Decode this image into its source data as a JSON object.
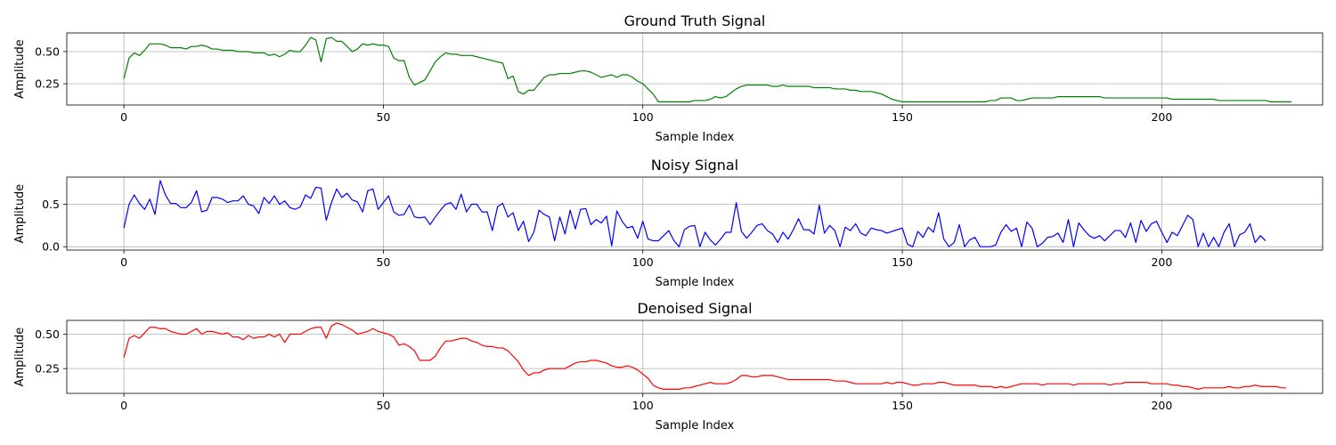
{
  "chart_data": [
    {
      "type": "line",
      "title": "Ground Truth Signal",
      "xlabel": "Sample Index",
      "ylabel": "Amplitude",
      "color": "#008000",
      "xlim": [
        -11,
        231
      ],
      "ylim": [
        0.085,
        0.645
      ],
      "xticks": [
        0,
        50,
        100,
        150,
        200
      ],
      "yticks": [
        0.25,
        0.5
      ],
      "ytick_labels": [
        "0.25",
        "0.50"
      ],
      "grid": true,
      "x_start": 0,
      "values": [
        0.29,
        0.45,
        0.49,
        0.47,
        0.51,
        0.56,
        0.56,
        0.56,
        0.55,
        0.53,
        0.53,
        0.53,
        0.52,
        0.54,
        0.54,
        0.55,
        0.54,
        0.52,
        0.52,
        0.51,
        0.51,
        0.51,
        0.5,
        0.5,
        0.5,
        0.49,
        0.49,
        0.49,
        0.47,
        0.48,
        0.46,
        0.48,
        0.51,
        0.5,
        0.5,
        0.55,
        0.61,
        0.59,
        0.42,
        0.6,
        0.61,
        0.58,
        0.58,
        0.54,
        0.5,
        0.52,
        0.56,
        0.55,
        0.56,
        0.55,
        0.55,
        0.54,
        0.45,
        0.43,
        0.43,
        0.3,
        0.24,
        0.26,
        0.28,
        0.35,
        0.42,
        0.46,
        0.49,
        0.48,
        0.48,
        0.47,
        0.47,
        0.47,
        0.46,
        0.45,
        0.44,
        0.43,
        0.42,
        0.41,
        0.29,
        0.31,
        0.19,
        0.17,
        0.2,
        0.2,
        0.25,
        0.3,
        0.32,
        0.32,
        0.33,
        0.33,
        0.33,
        0.34,
        0.35,
        0.35,
        0.34,
        0.32,
        0.3,
        0.31,
        0.32,
        0.3,
        0.32,
        0.32,
        0.3,
        0.27,
        0.25,
        0.21,
        0.17,
        0.11,
        0.11,
        0.11,
        0.11,
        0.11,
        0.11,
        0.11,
        0.12,
        0.12,
        0.12,
        0.13,
        0.15,
        0.14,
        0.15,
        0.18,
        0.21,
        0.23,
        0.24,
        0.24,
        0.24,
        0.24,
        0.24,
        0.23,
        0.23,
        0.24,
        0.23,
        0.23,
        0.23,
        0.23,
        0.23,
        0.22,
        0.22,
        0.22,
        0.22,
        0.21,
        0.21,
        0.21,
        0.2,
        0.2,
        0.19,
        0.19,
        0.19,
        0.18,
        0.17,
        0.15,
        0.13,
        0.12,
        0.11,
        0.11,
        0.11,
        0.11,
        0.11,
        0.11,
        0.11,
        0.11,
        0.11,
        0.11,
        0.11,
        0.11,
        0.11,
        0.11,
        0.11,
        0.11,
        0.11,
        0.12,
        0.12,
        0.14,
        0.14,
        0.14,
        0.12,
        0.12,
        0.13,
        0.14,
        0.14,
        0.14,
        0.14,
        0.14,
        0.15,
        0.15,
        0.15,
        0.15,
        0.15,
        0.15,
        0.15,
        0.15,
        0.15,
        0.14,
        0.14,
        0.14,
        0.14,
        0.14,
        0.14,
        0.14,
        0.14,
        0.14,
        0.14,
        0.14,
        0.14,
        0.14,
        0.13,
        0.13,
        0.13,
        0.13,
        0.13,
        0.13,
        0.13,
        0.13,
        0.13,
        0.12,
        0.12,
        0.12,
        0.12,
        0.12,
        0.12,
        0.12,
        0.12,
        0.12,
        0.12,
        0.11,
        0.11,
        0.11,
        0.11,
        0.11
      ]
    },
    {
      "type": "line",
      "title": "Noisy Signal",
      "xlabel": "Sample Index",
      "ylabel": "Amplitude",
      "color": "#0000ff",
      "xlim": [
        -11,
        231
      ],
      "ylim": [
        -0.04,
        0.82
      ],
      "xticks": [
        0,
        50,
        100,
        150,
        200
      ],
      "yticks": [
        0.0,
        0.5
      ],
      "ytick_labels": [
        "0.0",
        "0.5"
      ],
      "grid": true,
      "x_start": 0,
      "values": [
        0.22,
        0.5,
        0.61,
        0.51,
        0.44,
        0.56,
        0.38,
        0.78,
        0.61,
        0.51,
        0.51,
        0.46,
        0.46,
        0.52,
        0.66,
        0.41,
        0.43,
        0.58,
        0.58,
        0.56,
        0.52,
        0.54,
        0.54,
        0.6,
        0.5,
        0.48,
        0.39,
        0.58,
        0.51,
        0.6,
        0.5,
        0.54,
        0.46,
        0.44,
        0.47,
        0.61,
        0.57,
        0.7,
        0.69,
        0.31,
        0.52,
        0.68,
        0.58,
        0.63,
        0.55,
        0.53,
        0.41,
        0.66,
        0.68,
        0.44,
        0.52,
        0.6,
        0.41,
        0.37,
        0.38,
        0.49,
        0.35,
        0.34,
        0.35,
        0.26,
        0.35,
        0.43,
        0.5,
        0.52,
        0.44,
        0.62,
        0.41,
        0.5,
        0.5,
        0.41,
        0.41,
        0.19,
        0.47,
        0.51,
        0.35,
        0.4,
        0.19,
        0.3,
        0.06,
        0.17,
        0.43,
        0.38,
        0.35,
        0.07,
        0.35,
        0.15,
        0.43,
        0.21,
        0.44,
        0.45,
        0.26,
        0.32,
        0.28,
        0.36,
        0.01,
        0.42,
        0.3,
        0.22,
        0.24,
        0.1,
        0.3,
        0.09,
        0.07,
        0.07,
        0.13,
        0.19,
        0.07,
        0.0,
        0.2,
        0.24,
        0.25,
        0.0,
        0.17,
        0.08,
        0.02,
        0.09,
        0.17,
        0.17,
        0.52,
        0.18,
        0.1,
        0.17,
        0.25,
        0.27,
        0.19,
        0.15,
        0.05,
        0.17,
        0.09,
        0.2,
        0.33,
        0.2,
        0.2,
        0.15,
        0.49,
        0.16,
        0.25,
        0.19,
        0.0,
        0.23,
        0.19,
        0.27,
        0.16,
        0.13,
        0.22,
        0.2,
        0.19,
        0.16,
        0.18,
        0.2,
        0.22,
        0.03,
        0.0,
        0.18,
        0.11,
        0.23,
        0.17,
        0.4,
        0.09,
        0.0,
        0.05,
        0.26,
        0.0,
        0.08,
        0.11,
        0.0,
        0.0,
        0.0,
        0.02,
        0.17,
        0.26,
        0.18,
        0.22,
        0.0,
        0.29,
        0.22,
        0.0,
        0.04,
        0.11,
        0.12,
        0.16,
        0.05,
        0.32,
        0.0,
        0.28,
        0.2,
        0.13,
        0.1,
        0.13,
        0.07,
        0.13,
        0.19,
        0.19,
        0.11,
        0.28,
        0.05,
        0.31,
        0.18,
        0.27,
        0.3,
        0.17,
        0.05,
        0.17,
        0.13,
        0.25,
        0.37,
        0.32,
        0.0,
        0.16,
        0.0,
        0.11,
        0.0,
        0.17,
        0.27,
        0.0,
        0.14,
        0.17,
        0.27,
        0.05,
        0.13,
        0.07
      ]
    },
    {
      "type": "line",
      "title": "Denoised Signal",
      "xlabel": "Sample Index",
      "ylabel": "Amplitude",
      "color": "#ff0000",
      "xlim": [
        -11,
        231
      ],
      "ylim": [
        0.07,
        0.6
      ],
      "xticks": [
        0,
        50,
        100,
        150,
        200
      ],
      "yticks": [
        0.25,
        0.5
      ],
      "ytick_labels": [
        "0.25",
        "0.50"
      ],
      "grid": true,
      "x_start": 0,
      "values": [
        0.33,
        0.47,
        0.49,
        0.47,
        0.51,
        0.55,
        0.55,
        0.54,
        0.54,
        0.52,
        0.51,
        0.5,
        0.5,
        0.52,
        0.54,
        0.5,
        0.52,
        0.52,
        0.51,
        0.5,
        0.51,
        0.48,
        0.48,
        0.46,
        0.49,
        0.47,
        0.48,
        0.48,
        0.5,
        0.48,
        0.5,
        0.44,
        0.5,
        0.5,
        0.5,
        0.52,
        0.54,
        0.55,
        0.55,
        0.47,
        0.56,
        0.58,
        0.57,
        0.55,
        0.53,
        0.5,
        0.51,
        0.52,
        0.54,
        0.52,
        0.51,
        0.5,
        0.48,
        0.42,
        0.43,
        0.41,
        0.38,
        0.31,
        0.31,
        0.31,
        0.34,
        0.4,
        0.45,
        0.45,
        0.46,
        0.47,
        0.47,
        0.45,
        0.44,
        0.42,
        0.41,
        0.41,
        0.4,
        0.4,
        0.38,
        0.34,
        0.3,
        0.24,
        0.2,
        0.22,
        0.22,
        0.24,
        0.25,
        0.25,
        0.25,
        0.25,
        0.27,
        0.29,
        0.3,
        0.3,
        0.31,
        0.31,
        0.3,
        0.29,
        0.27,
        0.26,
        0.26,
        0.27,
        0.26,
        0.24,
        0.21,
        0.18,
        0.13,
        0.11,
        0.1,
        0.1,
        0.1,
        0.1,
        0.11,
        0.11,
        0.12,
        0.13,
        0.14,
        0.15,
        0.14,
        0.14,
        0.14,
        0.15,
        0.17,
        0.2,
        0.2,
        0.19,
        0.19,
        0.2,
        0.2,
        0.2,
        0.19,
        0.18,
        0.17,
        0.17,
        0.17,
        0.17,
        0.17,
        0.17,
        0.17,
        0.17,
        0.17,
        0.16,
        0.16,
        0.16,
        0.15,
        0.14,
        0.14,
        0.14,
        0.14,
        0.14,
        0.14,
        0.15,
        0.14,
        0.15,
        0.15,
        0.14,
        0.13,
        0.13,
        0.14,
        0.14,
        0.14,
        0.15,
        0.15,
        0.14,
        0.13,
        0.13,
        0.13,
        0.13,
        0.13,
        0.12,
        0.12,
        0.12,
        0.11,
        0.12,
        0.11,
        0.12,
        0.13,
        0.14,
        0.14,
        0.14,
        0.14,
        0.13,
        0.14,
        0.14,
        0.14,
        0.14,
        0.14,
        0.13,
        0.14,
        0.14,
        0.14,
        0.14,
        0.14,
        0.14,
        0.13,
        0.14,
        0.14,
        0.15,
        0.15,
        0.15,
        0.15,
        0.15,
        0.14,
        0.14,
        0.14,
        0.14,
        0.13,
        0.13,
        0.12,
        0.12,
        0.11,
        0.1,
        0.11,
        0.11,
        0.11,
        0.11,
        0.11,
        0.12,
        0.11,
        0.11,
        0.12,
        0.12,
        0.13,
        0.12,
        0.12,
        0.12,
        0.12,
        0.11,
        0.11
      ]
    }
  ]
}
